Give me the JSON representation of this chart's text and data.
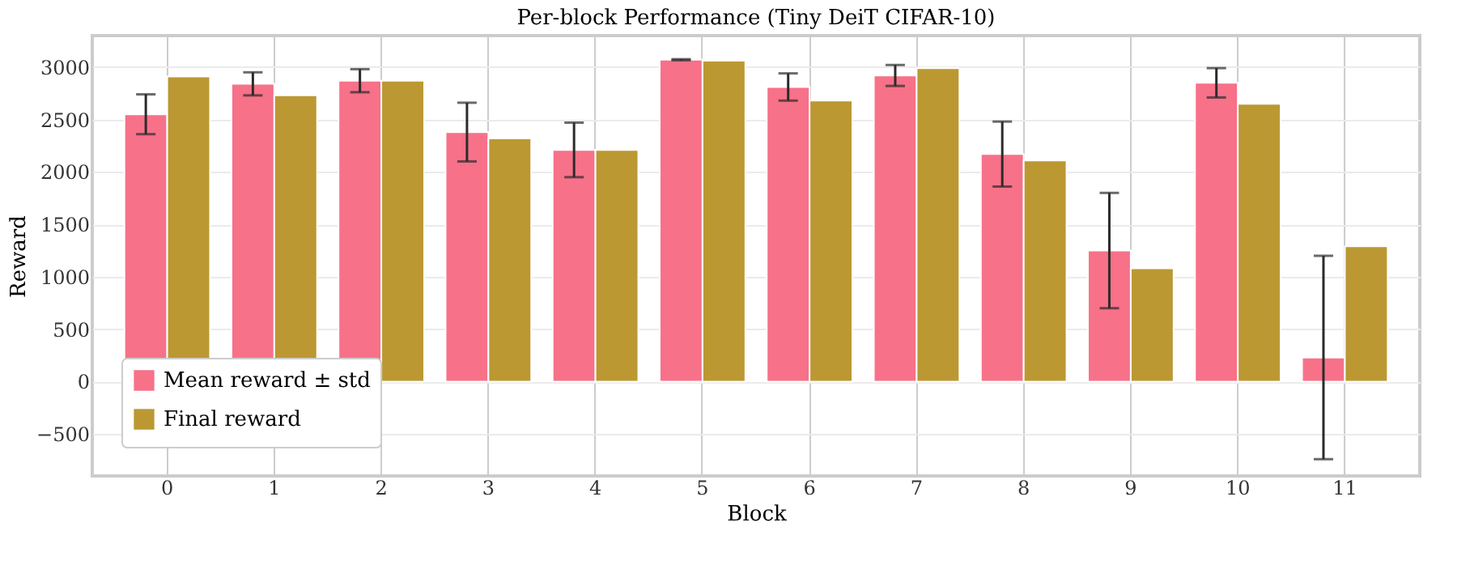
{
  "chart_data": {
    "type": "bar",
    "title": "Per-block Performance (Tiny DeiT CIFAR-10)",
    "xlabel": "Block",
    "ylabel": "Reward",
    "categories": [
      "0",
      "1",
      "2",
      "3",
      "4",
      "5",
      "6",
      "7",
      "8",
      "9",
      "10",
      "11"
    ],
    "series": [
      {
        "name": "Mean reward ± std",
        "color": "#f77189",
        "values": [
          2550,
          2840,
          2870,
          2380,
          2210,
          3070,
          2810,
          2920,
          2170,
          1250,
          2850,
          230
        ],
        "errors": [
          190,
          110,
          110,
          280,
          260,
          5,
          130,
          100,
          310,
          550,
          140,
          970
        ]
      },
      {
        "name": "Final reward",
        "color": "#bb9832",
        "values": [
          2910,
          2730,
          2870,
          2320,
          2210,
          3060,
          2680,
          2990,
          2110,
          1080,
          2650,
          1290
        ]
      }
    ],
    "ylim": [
      -900,
      3300
    ],
    "yticks": [
      -500,
      0,
      500,
      1000,
      1500,
      2000,
      2500,
      3000
    ],
    "grid": true,
    "legend": "bottom left"
  }
}
